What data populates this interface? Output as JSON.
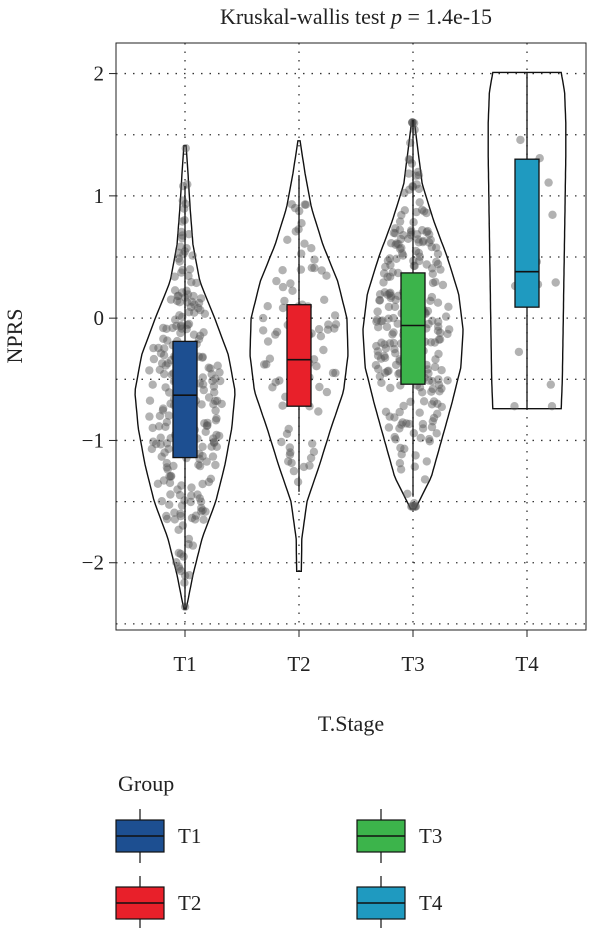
{
  "chart_data": {
    "type": "violin",
    "title_prefix": "Kruskal-wallis test ",
    "title_p": "p",
    "title_suffix": " = 1.4e-15",
    "xlabel": "T.Stage",
    "ylabel": "NPRS",
    "ylim": [
      -2.55,
      2.25
    ],
    "y_ticks": [
      2,
      1,
      0,
      -1,
      -2
    ],
    "y_tick_labels": [
      "2",
      "1",
      "0",
      "−1",
      "−2"
    ],
    "grid": "dotted",
    "categories": [
      "T1",
      "T2",
      "T3",
      "T4"
    ],
    "legend": {
      "title": "Group",
      "placement": "bottom",
      "entries": [
        "T1",
        "T2",
        "T3",
        "T4"
      ]
    },
    "series": [
      {
        "name": "T1",
        "color": "#1d4f91",
        "box": {
          "whisker_low": -2.38,
          "q1": -1.14,
          "median": -0.63,
          "q3": -0.19,
          "whisker_high": 1.08
        },
        "violin": {
          "min": -2.38,
          "max": 1.41,
          "profile": [
            [
              -2.38,
              0.01
            ],
            [
              -2.1,
              0.07
            ],
            [
              -1.8,
              0.15
            ],
            [
              -1.5,
              0.27
            ],
            [
              -1.2,
              0.35
            ],
            [
              -0.9,
              0.41
            ],
            [
              -0.6,
              0.44
            ],
            [
              -0.3,
              0.38
            ],
            [
              0.0,
              0.26
            ],
            [
              0.3,
              0.13
            ],
            [
              0.6,
              0.07
            ],
            [
              0.9,
              0.045
            ],
            [
              1.2,
              0.025
            ],
            [
              1.41,
              0.01
            ]
          ]
        }
      },
      {
        "name": "T2",
        "color": "#e8202a",
        "box": {
          "whisker_low": -1.42,
          "q1": -0.72,
          "median": -0.34,
          "q3": 0.11,
          "whisker_high": 1.17
        },
        "violin": {
          "min": -2.07,
          "max": 1.45,
          "profile": [
            [
              -2.07,
              0.02
            ],
            [
              -1.8,
              0.025
            ],
            [
              -1.5,
              0.07
            ],
            [
              -1.2,
              0.18
            ],
            [
              -0.9,
              0.28
            ],
            [
              -0.6,
              0.39
            ],
            [
              -0.3,
              0.43
            ],
            [
              0.0,
              0.42
            ],
            [
              0.3,
              0.34
            ],
            [
              0.6,
              0.21
            ],
            [
              0.9,
              0.11
            ],
            [
              1.2,
              0.05
            ],
            [
              1.45,
              0.01
            ]
          ]
        }
      },
      {
        "name": "T3",
        "color": "#3cb44b",
        "box": {
          "whisker_low": -1.46,
          "q1": -0.54,
          "median": -0.06,
          "q3": 0.37,
          "whisker_high": 1.62
        },
        "violin": {
          "min": -1.56,
          "max": 1.62,
          "profile": [
            [
              -1.56,
              0.02
            ],
            [
              -1.3,
              0.16
            ],
            [
              -1.0,
              0.25
            ],
            [
              -0.7,
              0.34
            ],
            [
              -0.4,
              0.42
            ],
            [
              -0.1,
              0.44
            ],
            [
              0.2,
              0.4
            ],
            [
              0.5,
              0.3
            ],
            [
              0.8,
              0.18
            ],
            [
              1.1,
              0.08
            ],
            [
              1.4,
              0.04
            ],
            [
              1.62,
              0.01
            ]
          ]
        }
      },
      {
        "name": "T4",
        "color": "#1f9ac0",
        "box": {
          "whisker_low": -0.74,
          "q1": 0.09,
          "median": 0.38,
          "q3": 1.3,
          "whisker_high": 2.01
        },
        "violin": {
          "min": -0.74,
          "max": 2.01,
          "profile": [
            [
              -0.74,
              0.3
            ],
            [
              -0.5,
              0.31
            ],
            [
              -0.2,
              0.315
            ],
            [
              0.1,
              0.32
            ],
            [
              0.4,
              0.325
            ],
            [
              0.7,
              0.33
            ],
            [
              1.0,
              0.335
            ],
            [
              1.3,
              0.34
            ],
            [
              1.6,
              0.34
            ],
            [
              1.85,
              0.33
            ],
            [
              2.01,
              0.3
            ]
          ],
          "flat_ends": true
        }
      }
    ]
  }
}
